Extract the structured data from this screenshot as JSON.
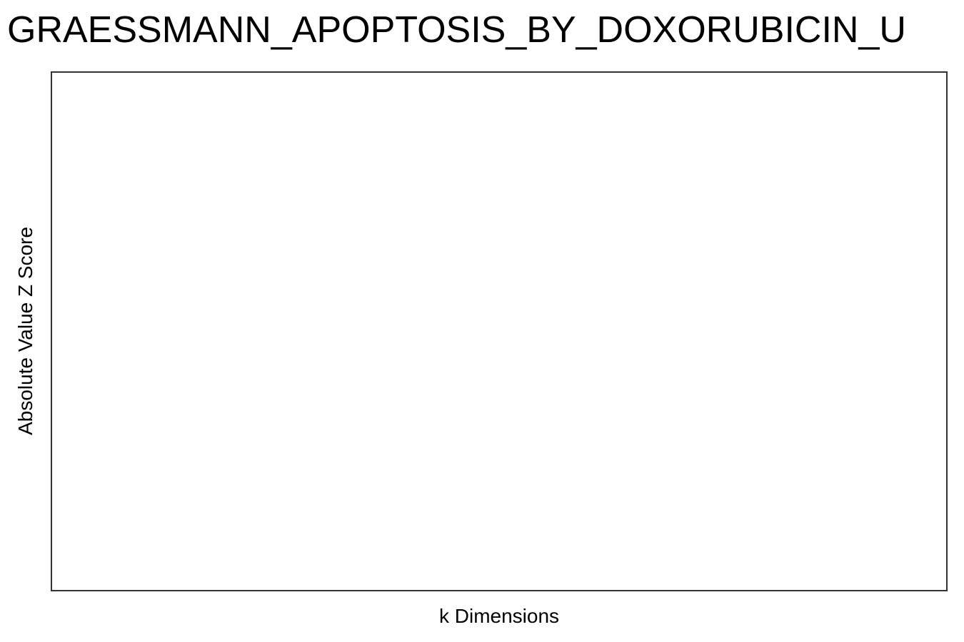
{
  "chart_data": {
    "type": "scatter",
    "title": "GRAESSMANN_APOPTOSIS_BY_DOXORUBICIN_U",
    "xlabel": "k Dimensions",
    "ylabel": "Absolute Value Z Score",
    "series": [],
    "grid": false,
    "legend": "none",
    "frame_color": "#333333"
  }
}
